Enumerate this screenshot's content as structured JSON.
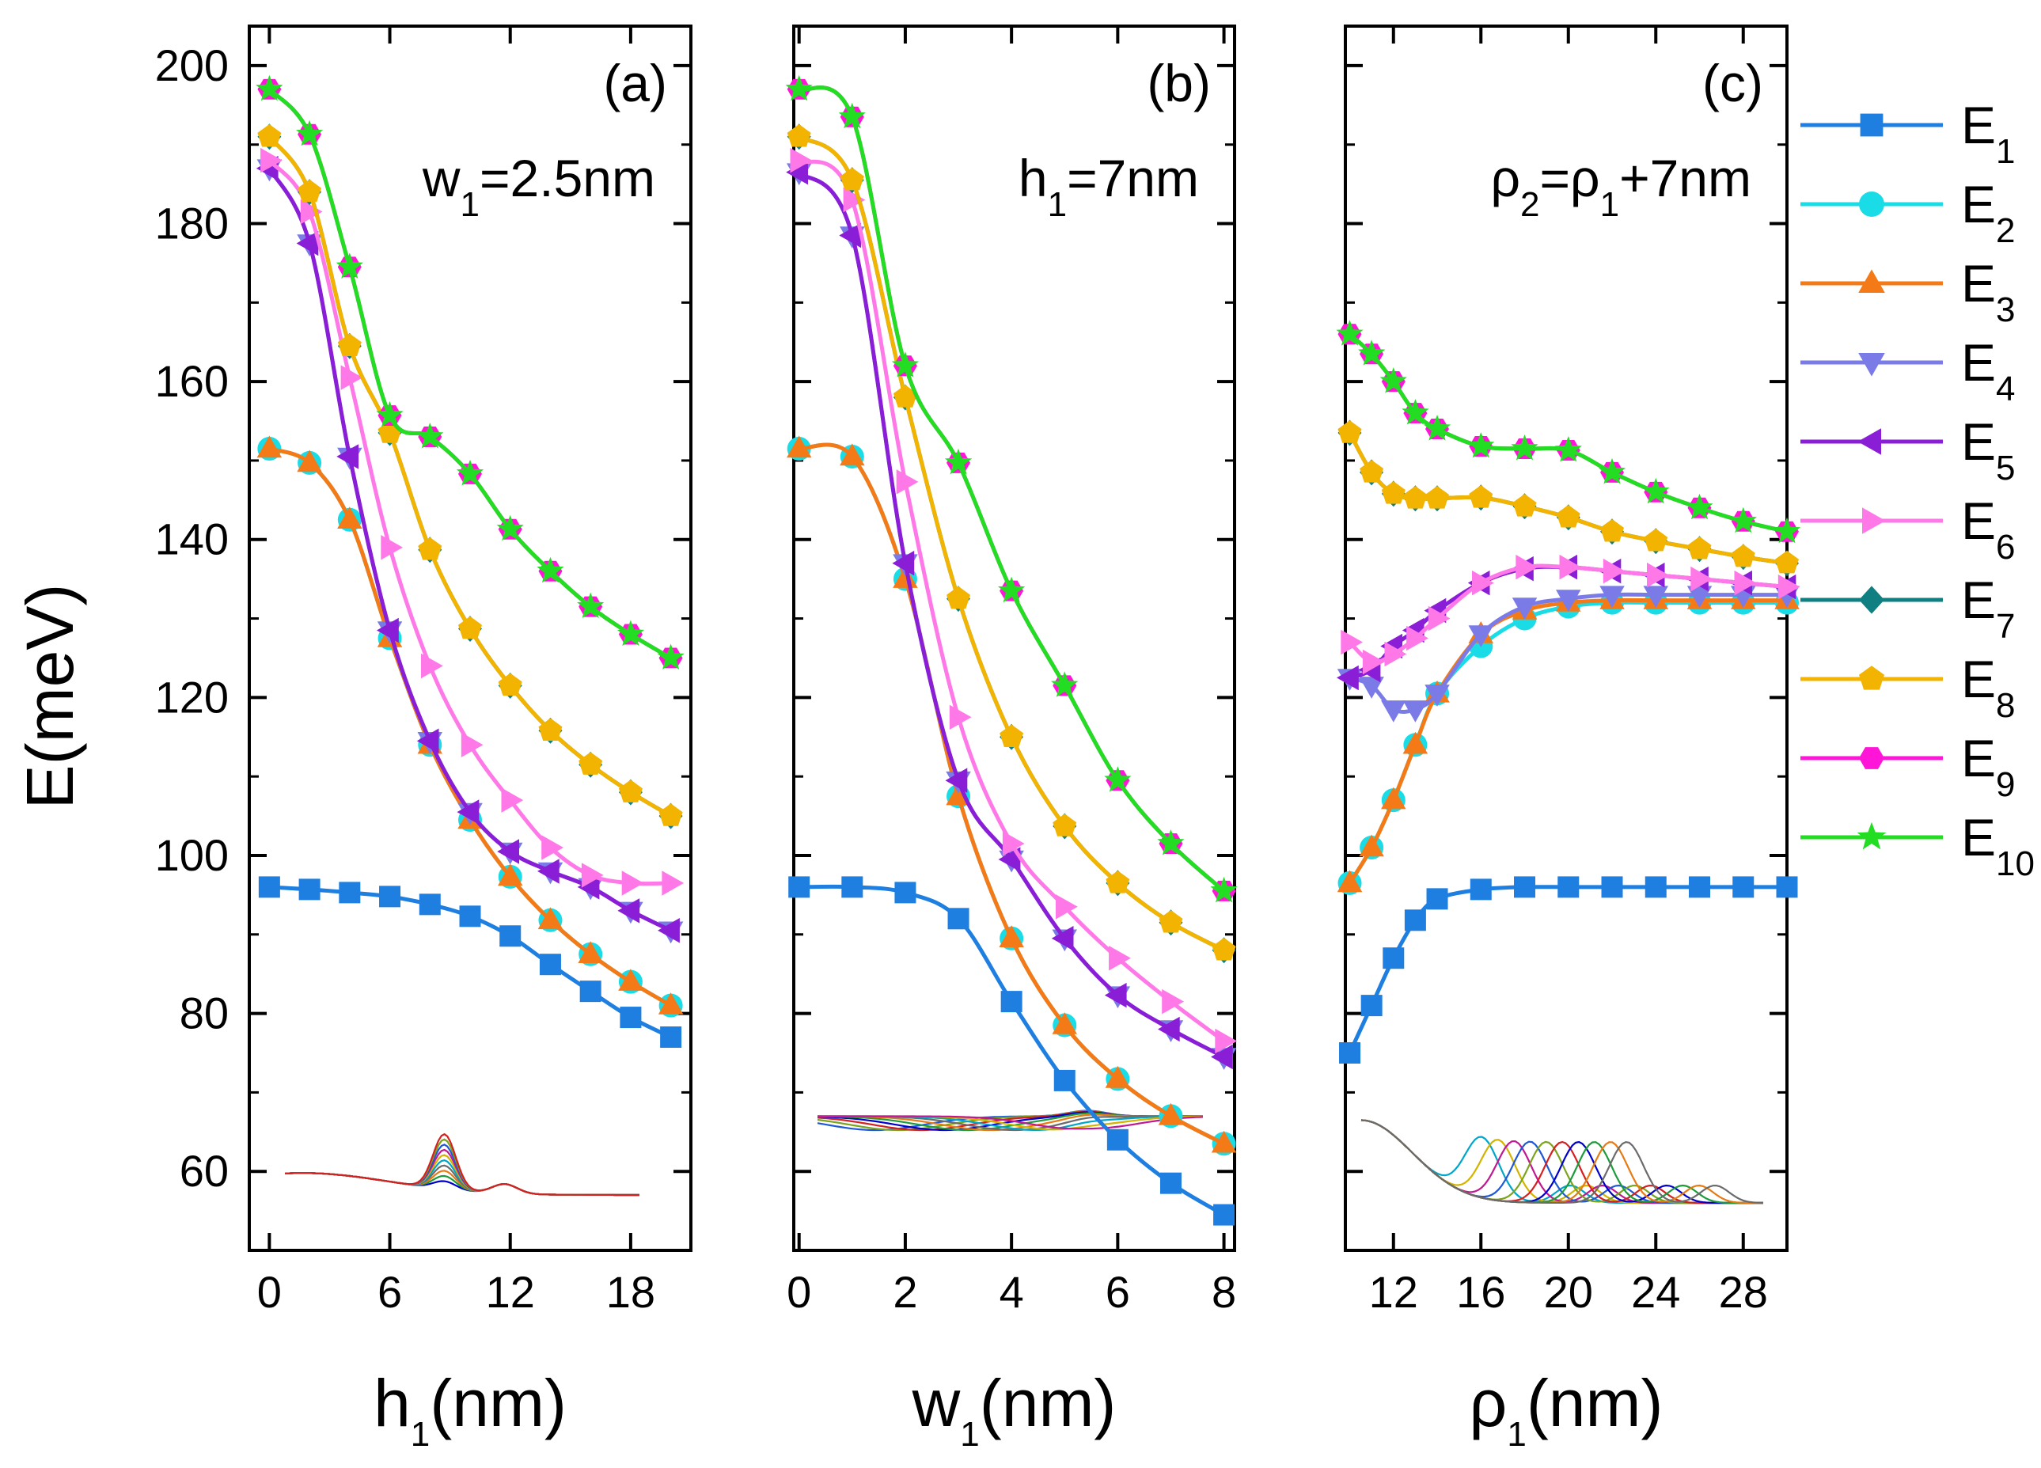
{
  "chart_data": {
    "type": "line",
    "ylabel": "E(meV)",
    "ylim": [
      50,
      205
    ],
    "yticks": [
      60,
      80,
      100,
      120,
      140,
      160,
      180,
      200
    ],
    "legend": {
      "placement": "right",
      "entries": [
        {
          "label": "E",
          "sub": "1",
          "color": "#1f7fe0",
          "marker": "square"
        },
        {
          "label": "E",
          "sub": "2",
          "color": "#19dce6",
          "marker": "circle"
        },
        {
          "label": "E",
          "sub": "3",
          "color": "#f47a18",
          "marker": "triangle-up"
        },
        {
          "label": "E",
          "sub": "4",
          "color": "#7b7be8",
          "marker": "triangle-down"
        },
        {
          "label": "E",
          "sub": "5",
          "color": "#8a1ed6",
          "marker": "triangle-left"
        },
        {
          "label": "E",
          "sub": "6",
          "color": "#ff78e8",
          "marker": "triangle-right"
        },
        {
          "label": "E",
          "sub": "7",
          "color": "#0f7f82",
          "marker": "diamond"
        },
        {
          "label": "E",
          "sub": "8",
          "color": "#f2b400",
          "marker": "pentagon"
        },
        {
          "label": "E",
          "sub": "9",
          "color": "#ff15d8",
          "marker": "hexagon"
        },
        {
          "label": "E",
          "sub": "10",
          "color": "#22dd22",
          "marker": "star"
        }
      ]
    },
    "panels": [
      {
        "tag": "(a)",
        "annotation": {
          "pre": "w",
          "sub": "1",
          "post": "=2.5nm"
        },
        "xlabel": {
          "pre": "h",
          "sub": "1",
          "post": "(nm)"
        },
        "xlim": [
          -1,
          21
        ],
        "xticks": [
          0,
          6,
          12,
          18
        ],
        "x": [
          0,
          2,
          4,
          6,
          8,
          10,
          12,
          14,
          16,
          18,
          20
        ],
        "series": [
          {
            "name": "E1",
            "values": [
              96,
              95.7,
              95.3,
              94.8,
              93.8,
              92.3,
              89.8,
              86.2,
              82.8,
              79.5,
              77
            ]
          },
          {
            "name": "E2",
            "values": [
              151.5,
              149.7,
              142.5,
              127.5,
              114,
              104.5,
              97.3,
              91.8,
              87.5,
              84,
              81
            ]
          },
          {
            "name": "E3",
            "values": [
              151.5,
              149.7,
              142.5,
              127.5,
              114,
              104.5,
              97.3,
              91.8,
              87.5,
              84,
              81
            ]
          },
          {
            "name": "E4",
            "values": [
              187,
              177.5,
              150.5,
              128.5,
              114.5,
              105.5,
              100.5,
              98,
              96,
              93,
              90.5
            ]
          },
          {
            "name": "E5",
            "values": [
              187,
              177.5,
              150.5,
              128.5,
              114.5,
              105.5,
              100.5,
              98,
              96,
              93,
              90.5
            ]
          },
          {
            "name": "E6",
            "values": [
              188,
              181.5,
              160.5,
              139,
              124,
              114,
              107,
              101,
              97.5,
              96.5,
              96.5
            ]
          },
          {
            "name": "E7",
            "values": [
              191,
              184,
              164.5,
              153.5,
              138.7,
              128.7,
              121.5,
              115.8,
              111.5,
              108,
              105
            ]
          },
          {
            "name": "E8",
            "values": [
              191,
              184,
              164.5,
              153.5,
              138.7,
              128.7,
              121.5,
              115.8,
              111.5,
              108,
              105
            ]
          },
          {
            "name": "E9",
            "values": [
              197,
              191.3,
              174.5,
              155.7,
              153,
              148.3,
              141.3,
              136,
              131.5,
              128,
              125
            ]
          },
          {
            "name": "E10",
            "values": [
              197,
              191.3,
              174.5,
              155.7,
              153,
              148.3,
              141.3,
              136,
              131.5,
              128,
              125
            ]
          }
        ]
      },
      {
        "tag": "(b)",
        "annotation": {
          "pre": "h",
          "sub": "1",
          "post": "=7nm"
        },
        "xlabel": {
          "pre": "w",
          "sub": "1",
          "post": "(nm)"
        },
        "xlim": [
          -0.1,
          8.2
        ],
        "xticks": [
          0,
          2,
          4,
          6,
          8
        ],
        "x": [
          0,
          1,
          2,
          3,
          4,
          5,
          6,
          7,
          8
        ],
        "series": [
          {
            "name": "E1",
            "values": [
              96,
              96,
              95.3,
              92,
              81.5,
              71.5,
              64,
              58.5,
              54.5
            ]
          },
          {
            "name": "E2",
            "values": [
              151.5,
              150.5,
              135,
              107.5,
              89.5,
              78.5,
              71.7,
              67,
              63.5
            ]
          },
          {
            "name": "E3",
            "values": [
              151.5,
              150.5,
              135,
              107.5,
              89.5,
              78.5,
              71.7,
              67,
              63.5
            ]
          },
          {
            "name": "E4",
            "values": [
              186.5,
              178.5,
              137,
              109.5,
              99.5,
              89.5,
              82.3,
              78,
              74.5
            ]
          },
          {
            "name": "E5",
            "values": [
              186.5,
              178.5,
              137,
              109.5,
              99.5,
              89.5,
              82.3,
              78,
              74.5
            ]
          },
          {
            "name": "E6",
            "values": [
              188,
              183,
              147.3,
              117.5,
              101.5,
              93.5,
              87,
              81.5,
              76.5
            ]
          },
          {
            "name": "E7",
            "values": [
              191,
              185.5,
              158,
              132.5,
              115,
              103.7,
              96.5,
              91.5,
              88
            ]
          },
          {
            "name": "E8",
            "values": [
              191,
              185.5,
              158,
              132.5,
              115,
              103.7,
              96.5,
              91.5,
              88
            ]
          },
          {
            "name": "E9",
            "values": [
              197,
              193.5,
              162,
              149.7,
              133.5,
              121.5,
              109.5,
              101.5,
              95.5
            ]
          },
          {
            "name": "E10",
            "values": [
              197,
              193.5,
              162,
              149.7,
              133.5,
              121.5,
              109.5,
              101.5,
              95.5
            ]
          }
        ]
      },
      {
        "tag": "(c)",
        "annotation": {
          "pre": "ρ",
          "sub": "2",
          "mid": "=ρ",
          "sub2": "1",
          "post": "+7nm"
        },
        "xlabel": {
          "pre": "ρ",
          "sub": "1",
          "post": "(nm)"
        },
        "xlim": [
          9.8,
          30
        ],
        "xticks": [
          12,
          16,
          20,
          24,
          28
        ],
        "x": [
          10,
          11,
          12,
          13,
          14,
          16,
          18,
          20,
          22,
          24,
          26,
          28,
          30
        ],
        "series": [
          {
            "name": "E1",
            "values": [
              75,
              81,
              87,
              91.8,
              94.5,
              95.7,
              96,
              96,
              96,
              96,
              96,
              96,
              96
            ]
          },
          {
            "name": "E2",
            "values": [
              96.5,
              101,
              107,
              114,
              120.5,
              126.5,
              130,
              131.5,
              132,
              132,
              132,
              132,
              132
            ]
          },
          {
            "name": "E3",
            "values": [
              96.5,
              101,
              107,
              114,
              120.5,
              128,
              131,
              132,
              132.3,
              132.3,
              132.3,
              132.3,
              132.3
            ]
          },
          {
            "name": "E4",
            "values": [
              122.5,
              121.5,
              118.5,
              118.5,
              120.5,
              128,
              131.5,
              132.5,
              133,
              133,
              133,
              133,
              133
            ]
          },
          {
            "name": "E5",
            "values": [
              122.5,
              123.5,
              126.5,
              128.5,
              131,
              134.5,
              136.3,
              136.5,
              136,
              135.5,
              135,
              134.5,
              134
            ]
          },
          {
            "name": "E6",
            "values": [
              127,
              124.5,
              125.5,
              127.5,
              130,
              134.5,
              136.5,
              136.5,
              136,
              135.5,
              135,
              134.5,
              134
            ]
          },
          {
            "name": "E7",
            "values": [
              153.5,
              148.5,
              145.8,
              145.2,
              145.2,
              145.3,
              144.2,
              142.8,
              141,
              139.8,
              138.8,
              137.8,
              137
            ]
          },
          {
            "name": "E8",
            "values": [
              153.5,
              148.5,
              145.8,
              145.2,
              145.2,
              145.3,
              144.2,
              142.8,
              141,
              139.8,
              138.8,
              137.8,
              137
            ]
          },
          {
            "name": "E9",
            "values": [
              166,
              163.5,
              160,
              156,
              154,
              151.8,
              151.5,
              151.3,
              148.5,
              146,
              144,
              142.3,
              141
            ]
          },
          {
            "name": "E10",
            "values": [
              166,
              163.5,
              160,
              156,
              154,
              151.8,
              151.5,
              151.3,
              148.5,
              146,
              144,
              142.3,
              141
            ]
          }
        ]
      }
    ]
  }
}
